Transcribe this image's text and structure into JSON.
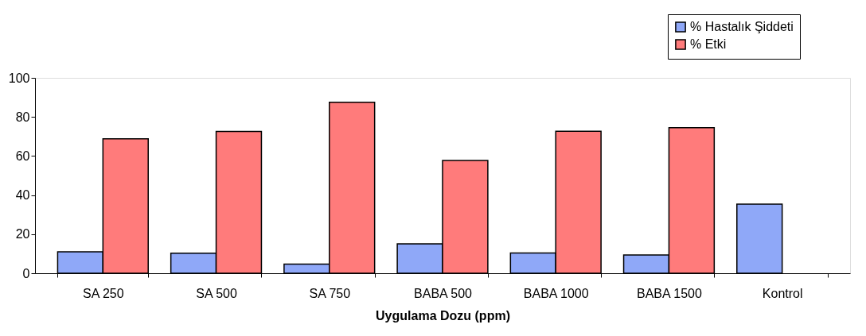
{
  "chart_data": {
    "type": "bar",
    "xlabel": "Uygulama Dozu (ppm)",
    "categories": [
      "SA 250",
      "SA 500",
      "SA 750",
      "BABA 500",
      "BABA 1000",
      "BABA 1500",
      "Kontrol"
    ],
    "series": [
      {
        "name": "% Hastalık Şiddeti",
        "color": "#8fa8f8",
        "values": [
          11,
          10.3,
          4.7,
          15,
          10.4,
          9.3,
          35.4
        ]
      },
      {
        "name": "% Etki",
        "color": "#ff7b7b",
        "values": [
          68.8,
          72.6,
          87.5,
          57.7,
          72.7,
          74.5,
          null
        ]
      }
    ],
    "ylim": [
      0,
      100
    ],
    "yticks": [
      0,
      20,
      40,
      60,
      80,
      100
    ],
    "grid": false,
    "legend": "top right"
  }
}
